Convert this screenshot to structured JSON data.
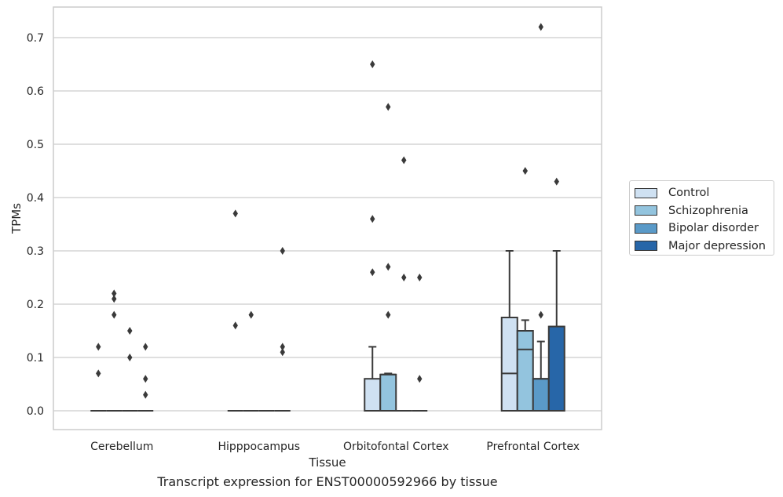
{
  "chart_data": {
    "type": "box",
    "xlabel": "Tissue",
    "ylabel": "TPMs",
    "ylim": [
      -0.035,
      0.76
    ],
    "yticks": [
      "0.0",
      "0.1",
      "0.2",
      "0.3",
      "0.4",
      "0.5",
      "0.6",
      "0.7"
    ],
    "grid": true,
    "legend_position": "right",
    "categories": [
      "Cerebellum",
      "Hipppocampus",
      "Orbitofontal Cortex",
      "Prefrontal Cortex"
    ],
    "series": [
      {
        "name": "Control",
        "color": "#cfe1f2",
        "boxes": [
          {
            "category": "Cerebellum",
            "q1": 0,
            "median": 0,
            "q3": 0,
            "whisker_low": 0,
            "whisker_high": 0,
            "outliers": [
              0.07,
              0.12
            ]
          },
          {
            "category": "Hipppocampus",
            "q1": 0,
            "median": 0,
            "q3": 0,
            "whisker_low": 0,
            "whisker_high": 0,
            "outliers": [
              0.16,
              0.37
            ]
          },
          {
            "category": "Orbitofontal Cortex",
            "q1": 0,
            "median": 0,
            "q3": 0.06,
            "whisker_low": 0,
            "whisker_high": 0.12,
            "outliers": [
              0.26,
              0.36,
              0.65
            ]
          },
          {
            "category": "Prefrontal Cortex",
            "q1": 0,
            "median": 0.07,
            "q3": 0.175,
            "whisker_low": 0,
            "whisker_high": 0.3,
            "outliers": []
          }
        ]
      },
      {
        "name": "Schizophrenia",
        "color": "#93c4de",
        "boxes": [
          {
            "category": "Cerebellum",
            "q1": 0,
            "median": 0,
            "q3": 0,
            "whisker_low": 0,
            "whisker_high": 0,
            "outliers": [
              0.18,
              0.21,
              0.22
            ]
          },
          {
            "category": "Hipppocampus",
            "q1": 0,
            "median": 0,
            "q3": 0,
            "whisker_low": 0,
            "whisker_high": 0,
            "outliers": [
              0.18
            ]
          },
          {
            "category": "Orbitofontal Cortex",
            "q1": 0,
            "median": 0.068,
            "q3": 0.068,
            "whisker_low": 0,
            "whisker_high": 0.07,
            "outliers": [
              0.18,
              0.27,
              0.57
            ]
          },
          {
            "category": "Prefrontal Cortex",
            "q1": 0,
            "median": 0.115,
            "q3": 0.15,
            "whisker_low": 0,
            "whisker_high": 0.17,
            "outliers": [
              0.45
            ]
          }
        ]
      },
      {
        "name": "Bipolar disorder",
        "color": "#5a9ac8",
        "boxes": [
          {
            "category": "Cerebellum",
            "q1": 0,
            "median": 0,
            "q3": 0,
            "whisker_low": 0,
            "whisker_high": 0,
            "outliers": [
              0.1,
              0.15
            ]
          },
          {
            "category": "Hipppocampus",
            "q1": 0,
            "median": 0,
            "q3": 0,
            "whisker_low": 0,
            "whisker_high": 0,
            "outliers": []
          },
          {
            "category": "Orbitofontal Cortex",
            "q1": 0,
            "median": 0,
            "q3": 0,
            "whisker_low": 0,
            "whisker_high": 0,
            "outliers": [
              0.25,
              0.47
            ]
          },
          {
            "category": "Prefrontal Cortex",
            "q1": 0,
            "median": 0.06,
            "q3": 0.06,
            "whisker_low": 0,
            "whisker_high": 0.13,
            "outliers": [
              0.18,
              0.72
            ]
          }
        ]
      },
      {
        "name": "Major depression",
        "color": "#2766a8",
        "boxes": [
          {
            "category": "Cerebellum",
            "q1": 0,
            "median": 0,
            "q3": 0,
            "whisker_low": 0,
            "whisker_high": 0,
            "outliers": [
              0.03,
              0.06,
              0.12
            ]
          },
          {
            "category": "Hipppocampus",
            "q1": 0,
            "median": 0,
            "q3": 0,
            "whisker_low": 0,
            "whisker_high": 0,
            "outliers": [
              0.11,
              0.12,
              0.3
            ]
          },
          {
            "category": "Orbitofontal Cortex",
            "q1": 0,
            "median": 0,
            "q3": 0,
            "whisker_low": 0,
            "whisker_high": 0,
            "outliers": [
              0.06,
              0.25
            ]
          },
          {
            "category": "Prefrontal Cortex",
            "q1": 0,
            "median": 0.158,
            "q3": 0.158,
            "whisker_low": 0,
            "whisker_high": 0.3,
            "outliers": [
              0.43
            ]
          }
        ]
      }
    ]
  },
  "caption": "Transcript expression for ENST00000592966 by tissue"
}
